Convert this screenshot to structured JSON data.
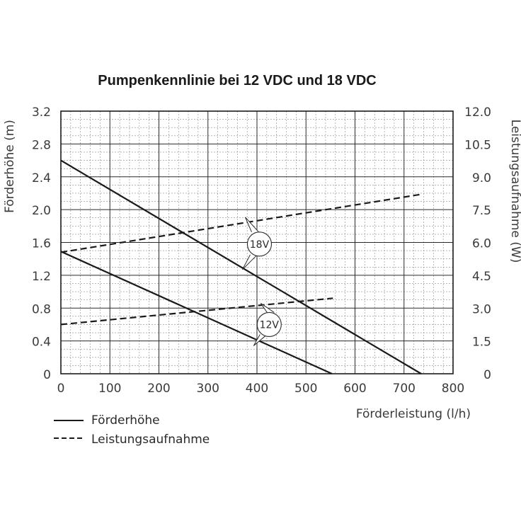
{
  "chart_data": {
    "type": "line",
    "title": "Pumpenkennlinie bei 12 VDC und 18 VDC",
    "xlabel": "Förderleistung (l/h)",
    "ylabel_left": "Förderhöhe (m)",
    "ylabel_right": "Leistungsaufnahme (W)",
    "xlim": [
      0,
      800
    ],
    "ylim_left": [
      0,
      3.2
    ],
    "ylim_right": [
      0,
      12
    ],
    "x_ticks": [
      "0",
      "100",
      "200",
      "300",
      "400",
      "500",
      "600",
      "700",
      "800"
    ],
    "y_left_ticks": [
      "0",
      "0.4",
      "0.8",
      "1.2",
      "1.6",
      "2.0",
      "2.4",
      "2.8",
      "3.2"
    ],
    "y_right_ticks": [
      "0",
      "1.5",
      "3.0",
      "4.5",
      "6.0",
      "7.5",
      "9.0",
      "10.5",
      "12.0"
    ],
    "grid": true,
    "legend": {
      "placement": "bottom-left",
      "entries": [
        {
          "label": "Förderhöhe",
          "style": "solid"
        },
        {
          "label": "Leistungsaufnahme",
          "style": "dashed"
        }
      ]
    },
    "annotations": [
      {
        "label": "18V",
        "x": 405,
        "y_left": 1.58
      },
      {
        "label": "12V",
        "x": 425,
        "y_left": 0.6
      }
    ],
    "series": [
      {
        "axis": "left",
        "style": "solid",
        "points": [
          [
            0,
            2.6
          ],
          [
            735,
            0
          ]
        ]
      },
      {
        "axis": "left",
        "style": "solid",
        "points": [
          [
            0,
            1.49
          ],
          [
            553,
            0
          ]
        ]
      },
      {
        "axis": "right",
        "style": "dashed",
        "points": [
          [
            0,
            5.55
          ],
          [
            735,
            8.2
          ]
        ]
      },
      {
        "axis": "right",
        "style": "dashed",
        "points": [
          [
            0,
            2.25
          ],
          [
            555,
            3.45
          ]
        ]
      }
    ]
  }
}
